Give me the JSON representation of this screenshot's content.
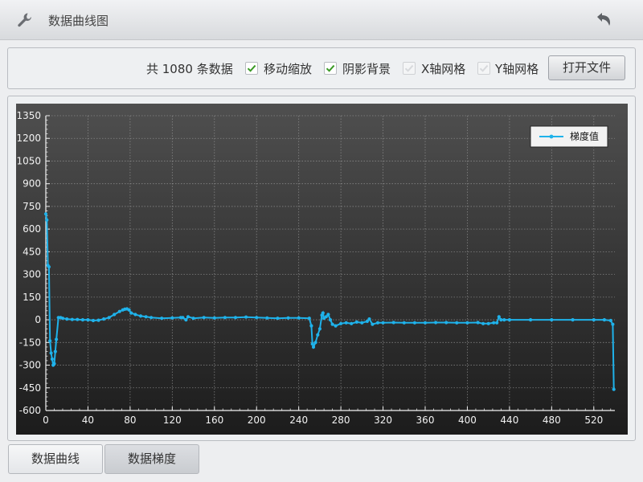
{
  "window": {
    "title": "数据曲线图",
    "icon": "wrench-icon",
    "back_icon": "back-arrow-icon"
  },
  "toolbar": {
    "count_text": "共 1080 条数据",
    "checkboxes": [
      {
        "label": "移动缩放",
        "checked": true,
        "enabled": true
      },
      {
        "label": "阴影背景",
        "checked": true,
        "enabled": true
      },
      {
        "label": "X轴网格",
        "checked": false,
        "enabled": false
      },
      {
        "label": "Y轴网格",
        "checked": false,
        "enabled": false
      }
    ],
    "open_button": "打开文件"
  },
  "tabs": [
    {
      "label": "数据曲线",
      "active": false
    },
    {
      "label": "数据梯度",
      "active": true
    }
  ],
  "colors": {
    "series": "#1fb2ea",
    "chart_bg_top": "#4f4f4f",
    "chart_bg_bottom": "#1c1c1c",
    "check": "#3a9a25"
  },
  "chart_data": {
    "type": "line",
    "legend": {
      "entries": [
        "梯度值"
      ],
      "placement": "top-right"
    },
    "xlim": [
      0,
      540
    ],
    "ylim": [
      -600,
      1350
    ],
    "xticks": [
      0,
      40,
      80,
      120,
      160,
      200,
      240,
      280,
      320,
      360,
      400,
      440,
      480,
      520
    ],
    "yticks": [
      1350,
      1200,
      1050,
      900,
      750,
      600,
      450,
      300,
      150,
      0,
      -150,
      -300,
      -450,
      -600
    ],
    "grid": true,
    "series": [
      {
        "name": "梯度值",
        "points": [
          [
            0,
            700
          ],
          [
            1,
            660
          ],
          [
            2,
            360
          ],
          [
            3,
            350
          ],
          [
            4,
            -140
          ],
          [
            5,
            -220
          ],
          [
            6,
            -260
          ],
          [
            7,
            -300
          ],
          [
            8,
            -290
          ],
          [
            9,
            -210
          ],
          [
            10,
            -130
          ],
          [
            12,
            15
          ],
          [
            14,
            15
          ],
          [
            16,
            10
          ],
          [
            20,
            5
          ],
          [
            25,
            2
          ],
          [
            30,
            2
          ],
          [
            35,
            0
          ],
          [
            40,
            0
          ],
          [
            45,
            -5
          ],
          [
            50,
            -3
          ],
          [
            55,
            5
          ],
          [
            60,
            15
          ],
          [
            65,
            35
          ],
          [
            70,
            55
          ],
          [
            73,
            65
          ],
          [
            75,
            70
          ],
          [
            77,
            72
          ],
          [
            79,
            65
          ],
          [
            81,
            45
          ],
          [
            85,
            35
          ],
          [
            90,
            25
          ],
          [
            95,
            20
          ],
          [
            100,
            15
          ],
          [
            110,
            10
          ],
          [
            120,
            12
          ],
          [
            128,
            15
          ],
          [
            130,
            15
          ],
          [
            133,
            0
          ],
          [
            135,
            20
          ],
          [
            140,
            10
          ],
          [
            150,
            15
          ],
          [
            160,
            12
          ],
          [
            170,
            15
          ],
          [
            180,
            15
          ],
          [
            190,
            18
          ],
          [
            200,
            15
          ],
          [
            210,
            12
          ],
          [
            220,
            10
          ],
          [
            230,
            12
          ],
          [
            240,
            12
          ],
          [
            250,
            10
          ],
          [
            252,
            -40
          ],
          [
            253,
            -160
          ],
          [
            254,
            -180
          ],
          [
            256,
            -150
          ],
          [
            258,
            -100
          ],
          [
            260,
            -60
          ],
          [
            262,
            30
          ],
          [
            263,
            45
          ],
          [
            264,
            10
          ],
          [
            266,
            20
          ],
          [
            268,
            35
          ],
          [
            270,
            0
          ],
          [
            272,
            -30
          ],
          [
            275,
            -40
          ],
          [
            280,
            -25
          ],
          [
            285,
            -20
          ],
          [
            290,
            -25
          ],
          [
            295,
            -15
          ],
          [
            300,
            -20
          ],
          [
            305,
            -10
          ],
          [
            307,
            5
          ],
          [
            310,
            -30
          ],
          [
            315,
            -20
          ],
          [
            320,
            -20
          ],
          [
            330,
            -18
          ],
          [
            340,
            -20
          ],
          [
            350,
            -20
          ],
          [
            360,
            -20
          ],
          [
            370,
            -18
          ],
          [
            380,
            -18
          ],
          [
            390,
            -20
          ],
          [
            400,
            -20
          ],
          [
            410,
            -18
          ],
          [
            415,
            -25
          ],
          [
            420,
            -25
          ],
          [
            425,
            -20
          ],
          [
            428,
            -20
          ],
          [
            430,
            20
          ],
          [
            432,
            0
          ],
          [
            435,
            0
          ],
          [
            440,
            0
          ],
          [
            460,
            0
          ],
          [
            480,
            0
          ],
          [
            500,
            0
          ],
          [
            520,
            0
          ],
          [
            530,
            0
          ],
          [
            536,
            -5
          ],
          [
            538,
            -30
          ],
          [
            539,
            -460
          ]
        ]
      }
    ]
  }
}
